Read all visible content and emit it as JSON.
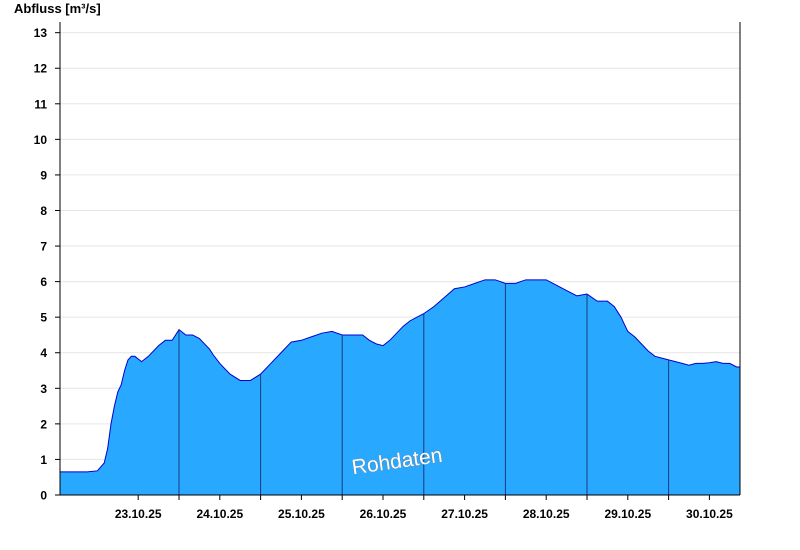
{
  "chart_data": {
    "type": "area",
    "ylabel": "Abfluss [m³/s]",
    "watermark": "Rohdaten",
    "ylim": [
      0,
      13.3
    ],
    "yticks": [
      0,
      1,
      2,
      3,
      4,
      5,
      6,
      7,
      8,
      9,
      10,
      11,
      12,
      13
    ],
    "x_range_days": [
      "22.10.25 13:00",
      "30.10.25 21:00"
    ],
    "xticks": [
      "23.10.25",
      "24.10.25",
      "25.10.25",
      "26.10.25",
      "27.10.25",
      "28.10.25",
      "29.10.25",
      "30.10.25"
    ],
    "grid": "horizontal",
    "colors": {
      "fill": "#29a8ff",
      "line": "#0000cc"
    },
    "series": [
      {
        "x": [
          "22.10.25 13:00",
          "22.10.25 21:00",
          "23.10.25 00:00",
          "23.10.25 02:00",
          "23.10.25 03:00",
          "23.10.25 04:00",
          "23.10.25 05:00",
          "23.10.25 06:00",
          "23.10.25 07:00",
          "23.10.25 08:00",
          "23.10.25 09:00",
          "23.10.25 10:00",
          "23.10.25 11:00",
          "23.10.25 13:00",
          "23.10.25 15:00",
          "23.10.25 18:00",
          "23.10.25 20:00",
          "23.10.25 22:00",
          "24.10.25 00:00",
          "24.10.25 02:00",
          "24.10.25 04:00",
          "24.10.25 06:00",
          "24.10.25 07:00",
          "24.10.25 09:00",
          "24.10.25 10:00",
          "24.10.25 12:00",
          "24.10.25 15:00",
          "24.10.25 18:00",
          "24.10.25 21:00",
          "25.10.25 00:00",
          "25.10.25 03:00",
          "25.10.25 06:00",
          "25.10.25 09:00",
          "25.10.25 12:00",
          "25.10.25 15:00",
          "25.10.25 18:00",
          "25.10.25 21:00",
          "26.10.25 00:00",
          "26.10.25 02:00",
          "26.10.25 04:00",
          "26.10.25 06:00",
          "26.10.25 08:00",
          "26.10.25 10:00",
          "26.10.25 12:00",
          "26.10.25 14:00",
          "26.10.25 16:00",
          "26.10.25 18:00",
          "26.10.25 20:00",
          "27.10.25 00:00",
          "27.10.25 03:00",
          "27.10.25 06:00",
          "27.10.25 09:00",
          "27.10.25 12:00",
          "27.10.25 15:00",
          "27.10.25 18:00",
          "27.10.25 21:00",
          "28.10.25 00:00",
          "28.10.25 03:00",
          "28.10.25 06:00",
          "28.10.25 09:00",
          "28.10.25 12:00",
          "28.10.25 15:00",
          "28.10.25 18:00",
          "28.10.25 21:00",
          "29.10.25 00:00",
          "29.10.25 03:00",
          "29.10.25 06:00",
          "29.10.25 08:00",
          "29.10.25 10:00",
          "29.10.25 11:00",
          "29.10.25 12:00",
          "29.10.25 14:00",
          "29.10.25 16:00",
          "29.10.25 18:00",
          "29.10.25 20:00",
          "29.10.25 22:00",
          "30.10.25 00:00",
          "30.10.25 02:00",
          "30.10.25 04:00",
          "30.10.25 06:00",
          "30.10.25 08:00",
          "30.10.25 10:00",
          "30.10.25 12:00",
          "30.10.25 14:00",
          "30.10.25 16:00",
          "30.10.25 18:00",
          "30.10.25 20:00",
          "30.10.25 21:00"
        ],
        "y": [
          0.65,
          0.65,
          0.68,
          0.9,
          1.3,
          2.0,
          2.5,
          2.9,
          3.1,
          3.5,
          3.8,
          3.9,
          3.9,
          3.75,
          3.9,
          4.2,
          4.35,
          4.35,
          4.65,
          4.5,
          4.5,
          4.4,
          4.3,
          4.1,
          3.95,
          3.7,
          3.4,
          3.22,
          3.22,
          3.4,
          3.7,
          4.0,
          4.3,
          4.35,
          4.45,
          4.55,
          4.6,
          4.5,
          4.5,
          4.5,
          4.5,
          4.35,
          4.25,
          4.2,
          4.35,
          4.55,
          4.75,
          4.9,
          5.1,
          5.3,
          5.55,
          5.8,
          5.85,
          5.95,
          6.05,
          6.05,
          5.95,
          5.95,
          6.05,
          6.05,
          6.05,
          5.9,
          5.75,
          5.6,
          5.65,
          5.45,
          5.45,
          5.3,
          5.0,
          4.8,
          4.6,
          4.45,
          4.25,
          4.05,
          3.9,
          3.85,
          3.8,
          3.75,
          3.7,
          3.65,
          3.7,
          3.7,
          3.72,
          3.75,
          3.7,
          3.7,
          3.6,
          3.6
        ]
      }
    ]
  }
}
